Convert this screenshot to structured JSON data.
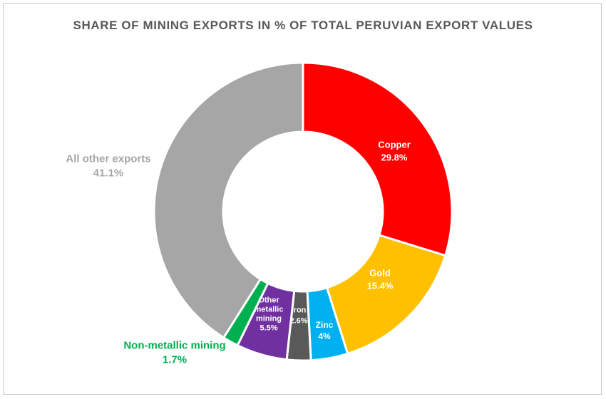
{
  "chart_data": {
    "type": "pie",
    "subtype": "donut",
    "title": "SHARE OF MINING EXPORTS IN % OF TOTAL PERUVIAN EXPORT VALUES",
    "legend": "none",
    "slices": [
      {
        "label": "Copper",
        "value": 29.8,
        "value_text": "29.8%",
        "color": "#ff0000",
        "label_color": "#ffffff"
      },
      {
        "label": "Gold",
        "value": 15.4,
        "value_text": "15.4%",
        "color": "#ffc000",
        "label_color": "#ffffff"
      },
      {
        "label": "Zinc",
        "value": 4,
        "value_text": "4%",
        "color": "#00b0f0",
        "label_color": "#ffffff"
      },
      {
        "label": "Iron",
        "value": 2.6,
        "value_text": "2.6%",
        "color": "#595959",
        "label_color": "#ffffff"
      },
      {
        "label": "Other metallic mining",
        "label_lines": [
          "Other",
          "metallic",
          "mining"
        ],
        "value": 5.5,
        "value_text": "5.5%",
        "color": "#7030a0",
        "label_color": "#ffffff"
      },
      {
        "label": "Non-metallic mining",
        "value": 1.7,
        "value_text": "1.7%",
        "color": "#00b050",
        "label_color": "#00b050"
      },
      {
        "label": "All other exports",
        "value": 41.1,
        "value_text": "41.1%",
        "color": "#a6a6a6",
        "label_color": "#a6a6a6"
      }
    ]
  }
}
